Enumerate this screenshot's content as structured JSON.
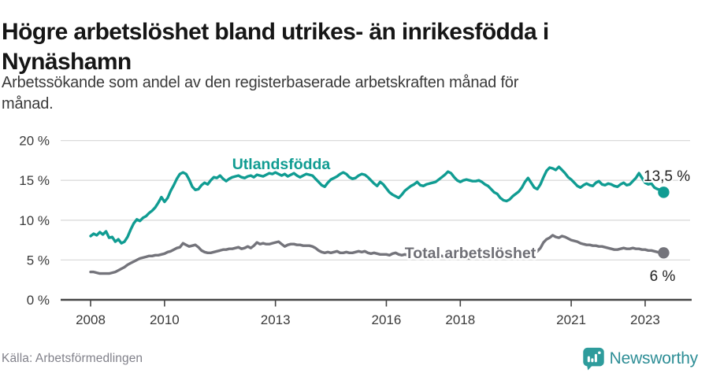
{
  "header": {
    "title_line1": "Högre arbetslöshet bland utrikes- än inrikesfödda i",
    "title_line2": "Nynäshamn",
    "subtitle_line1": "Arbetssökande som andel av den registerbaserade arbetskraften månad för",
    "subtitle_line2": "månad."
  },
  "footer": {
    "source": "Källa: Arbetsförmedlingen",
    "brand_name": "Newsworthy",
    "brand_icon": "newsworthy-speech-bubble-bar-chart-icon"
  },
  "colors": {
    "series_foreign_born": "#109C92",
    "series_total": "#74747B",
    "gridline": "#DBDBDB",
    "axis": "#454545",
    "tick_label": "#3A3A3A",
    "value_label": "#222222",
    "title": "#161616",
    "subtitle": "#3A3A3A",
    "source_text": "#81818A",
    "brand_icon": "#2E9C9C",
    "brand_text": "#2E8E96"
  },
  "chart_data": {
    "type": "line",
    "title": "Högre arbetslöshet bland utrikes- än inrikesfödda i Nynäshamn",
    "subtitle": "Arbetssökande som andel av den registerbaserade arbetskraften månad för månad.",
    "unit": "% av registerbaserad arbetskraft",
    "frequency": "monthly",
    "x_start": {
      "year": 2008,
      "month": 1
    },
    "x_end": {
      "year": 2023,
      "month": 7
    },
    "xticks": {
      "values": [
        2008,
        2010,
        2013,
        2016,
        2018,
        2021,
        2023
      ],
      "labels": [
        "2008",
        "2010",
        "2013",
        "2016",
        "2018",
        "2021",
        "2023"
      ]
    },
    "yticks": {
      "values": [
        0,
        5,
        10,
        15,
        20
      ],
      "labels": [
        "0 %",
        "5 %",
        "10 %",
        "15 %",
        "20 %"
      ]
    },
    "ylim": [
      0,
      20
    ],
    "grid": "horizontal-only",
    "legend": "inline-series-labels",
    "series": [
      {
        "name": "Utlandsfödda",
        "color": "#109C92",
        "end_label": "13,5 %",
        "end_value": 13.5,
        "values": [
          8.0,
          8.3,
          8.1,
          8.5,
          8.2,
          8.6,
          7.8,
          7.9,
          7.3,
          7.6,
          7.1,
          7.3,
          7.9,
          8.8,
          9.6,
          10.1,
          9.9,
          10.3,
          10.5,
          10.9,
          11.2,
          11.6,
          12.2,
          12.9,
          12.3,
          12.8,
          13.7,
          14.4,
          15.2,
          15.8,
          16.0,
          15.8,
          15.1,
          14.2,
          13.8,
          13.9,
          14.4,
          14.7,
          14.5,
          15.0,
          15.4,
          15.3,
          15.6,
          15.2,
          14.9,
          15.2,
          15.4,
          15.5,
          15.6,
          15.4,
          15.3,
          15.5,
          15.6,
          15.4,
          15.7,
          15.6,
          15.5,
          15.7,
          15.9,
          15.8,
          16.0,
          15.8,
          15.6,
          15.8,
          15.5,
          15.7,
          15.9,
          15.6,
          15.4,
          15.6,
          15.8,
          15.7,
          15.6,
          15.2,
          14.8,
          14.4,
          14.2,
          14.7,
          15.1,
          15.3,
          15.5,
          15.8,
          16.0,
          15.8,
          15.4,
          15.2,
          15.3,
          15.6,
          15.8,
          15.7,
          15.4,
          15.0,
          14.6,
          14.3,
          14.8,
          14.5,
          14.0,
          13.5,
          13.2,
          13.0,
          12.8,
          13.2,
          13.7,
          14.0,
          14.3,
          14.5,
          14.8,
          14.4,
          14.3,
          14.5,
          14.6,
          14.7,
          14.8,
          15.1,
          15.4,
          15.7,
          16.1,
          15.9,
          15.4,
          15.0,
          14.8,
          15.0,
          15.1,
          15.0,
          14.9,
          14.9,
          15.0,
          14.8,
          14.5,
          14.3,
          13.9,
          13.5,
          13.3,
          12.8,
          12.5,
          12.4,
          12.6,
          13.0,
          13.3,
          13.6,
          14.1,
          14.8,
          15.3,
          14.7,
          14.1,
          13.9,
          14.5,
          15.4,
          16.2,
          16.6,
          16.5,
          16.3,
          16.7,
          16.3,
          15.9,
          15.4,
          15.1,
          14.7,
          14.3,
          14.1,
          14.4,
          14.6,
          14.4,
          14.3,
          14.7,
          14.9,
          14.5,
          14.4,
          14.6,
          14.5,
          14.3,
          14.2,
          14.5,
          14.7,
          14.4,
          14.5,
          14.9,
          15.3,
          15.9,
          15.3,
          14.7,
          14.5,
          14.6,
          14.1,
          13.9,
          13.8,
          13.5
        ]
      },
      {
        "name": "Total arbetslöshet",
        "color": "#74747B",
        "end_label": "6 %",
        "end_value": 5.9,
        "values": [
          3.5,
          3.5,
          3.4,
          3.3,
          3.3,
          3.3,
          3.3,
          3.4,
          3.5,
          3.7,
          3.9,
          4.1,
          4.4,
          4.6,
          4.8,
          5.0,
          5.2,
          5.3,
          5.4,
          5.5,
          5.5,
          5.6,
          5.6,
          5.7,
          5.8,
          6.0,
          6.1,
          6.3,
          6.5,
          6.6,
          7.1,
          6.9,
          6.7,
          6.8,
          6.9,
          6.6,
          6.2,
          6.0,
          5.9,
          5.9,
          6.0,
          6.1,
          6.2,
          6.3,
          6.3,
          6.4,
          6.4,
          6.5,
          6.6,
          6.4,
          6.5,
          6.7,
          6.5,
          6.8,
          7.2,
          7.0,
          7.1,
          7.0,
          7.0,
          7.1,
          7.2,
          7.3,
          7.0,
          6.7,
          6.9,
          7.0,
          7.0,
          6.9,
          6.9,
          6.8,
          6.8,
          6.8,
          6.7,
          6.5,
          6.2,
          6.0,
          5.9,
          6.0,
          5.9,
          6.0,
          6.1,
          5.9,
          5.9,
          6.0,
          5.9,
          5.9,
          6.0,
          6.1,
          6.0,
          6.1,
          5.9,
          5.8,
          5.9,
          5.8,
          5.7,
          5.7,
          5.7,
          5.6,
          5.8,
          5.9,
          5.7,
          5.6,
          5.7,
          5.6,
          5.6,
          5.7,
          5.6,
          5.6,
          5.6,
          5.7,
          5.6,
          5.5,
          5.5,
          5.6,
          5.5,
          5.4,
          5.5,
          5.4,
          5.4,
          5.4,
          5.4,
          5.3,
          5.3,
          5.2,
          5.3,
          5.3,
          5.4,
          5.3,
          5.3,
          5.4,
          5.4,
          5.5,
          5.5,
          5.4,
          5.5,
          5.5,
          5.6,
          5.7,
          5.8,
          5.7,
          5.8,
          5.9,
          6.0,
          5.9,
          6.0,
          6.1,
          6.5,
          7.2,
          7.6,
          7.8,
          8.1,
          7.9,
          7.8,
          8.0,
          7.9,
          7.7,
          7.5,
          7.4,
          7.3,
          7.1,
          7.0,
          6.9,
          6.9,
          6.8,
          6.8,
          6.7,
          6.7,
          6.6,
          6.5,
          6.4,
          6.3,
          6.3,
          6.4,
          6.5,
          6.4,
          6.4,
          6.5,
          6.4,
          6.4,
          6.3,
          6.3,
          6.2,
          6.2,
          6.1,
          6.0,
          5.9,
          5.9
        ]
      }
    ]
  }
}
